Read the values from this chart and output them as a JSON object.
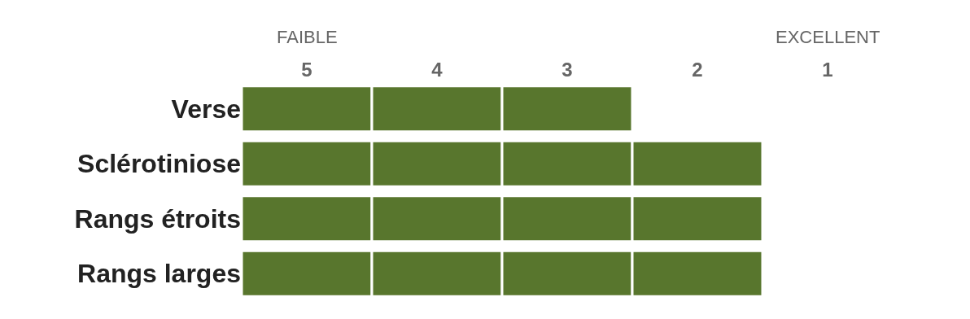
{
  "chart_data": {
    "type": "bar",
    "orientation": "horizontal",
    "categories": [
      "Verse",
      "Sclérotiniose",
      "Rangs étroits",
      "Rangs larges"
    ],
    "series": [
      {
        "color": "#58762d",
        "base": [
          5.5,
          5.5,
          5.5,
          5.5
        ],
        "values": [
          -1,
          -1,
          -1,
          -1
        ]
      },
      {
        "color": "#58762d",
        "base": [
          4.5,
          4.5,
          4.5,
          4.5
        ],
        "values": [
          -1,
          -1,
          -1,
          -1
        ]
      },
      {
        "color": "#58762d",
        "base": [
          3.5,
          3.5,
          3.5,
          3.5
        ],
        "values": [
          -1,
          -1,
          -1,
          -1
        ]
      },
      {
        "color": "#58762d",
        "base": [
          null,
          2.5,
          2.5,
          2.5
        ],
        "values": [
          null,
          -1,
          -1,
          -1
        ]
      }
    ],
    "xlim": [
      5.5,
      1
    ],
    "xticks": [
      5,
      4,
      3,
      2,
      1
    ],
    "annotations": [
      "FAIBLE",
      "EXCELLENT"
    ],
    "grid": false
  }
}
